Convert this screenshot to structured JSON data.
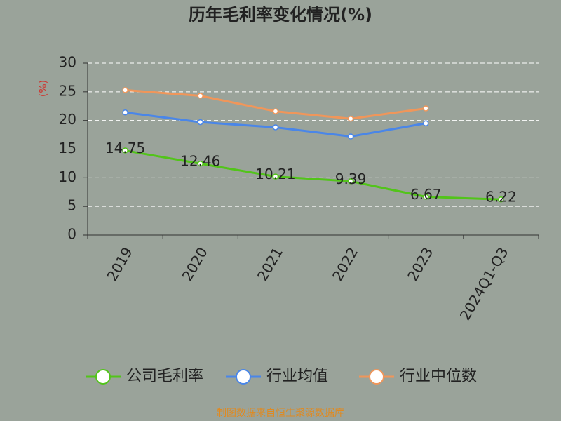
{
  "chart_data": {
    "type": "line",
    "title": "历年毛利率变化情况(%)",
    "y_label": "(%)",
    "categories": [
      "2019",
      "2020",
      "2021",
      "2022",
      "2023",
      "2024Q1-Q3"
    ],
    "series": [
      {
        "name": "公司毛利率",
        "color": "#52c41a",
        "values": [
          14.75,
          12.46,
          10.21,
          9.39,
          6.67,
          6.22
        ],
        "show_labels": true
      },
      {
        "name": "行业均值",
        "color": "#4a86e8",
        "values": [
          21.4,
          19.7,
          18.8,
          17.2,
          19.5,
          null
        ]
      },
      {
        "name": "行业中位数",
        "color": "#f0965a",
        "values": [
          25.3,
          24.3,
          21.6,
          20.3,
          22.1,
          null
        ]
      }
    ],
    "ylim": [
      0,
      30
    ],
    "yticks": [
      0,
      5,
      10,
      15,
      20,
      25,
      30
    ],
    "grid": true,
    "source": "制图数据来自恒生聚源数据库"
  }
}
